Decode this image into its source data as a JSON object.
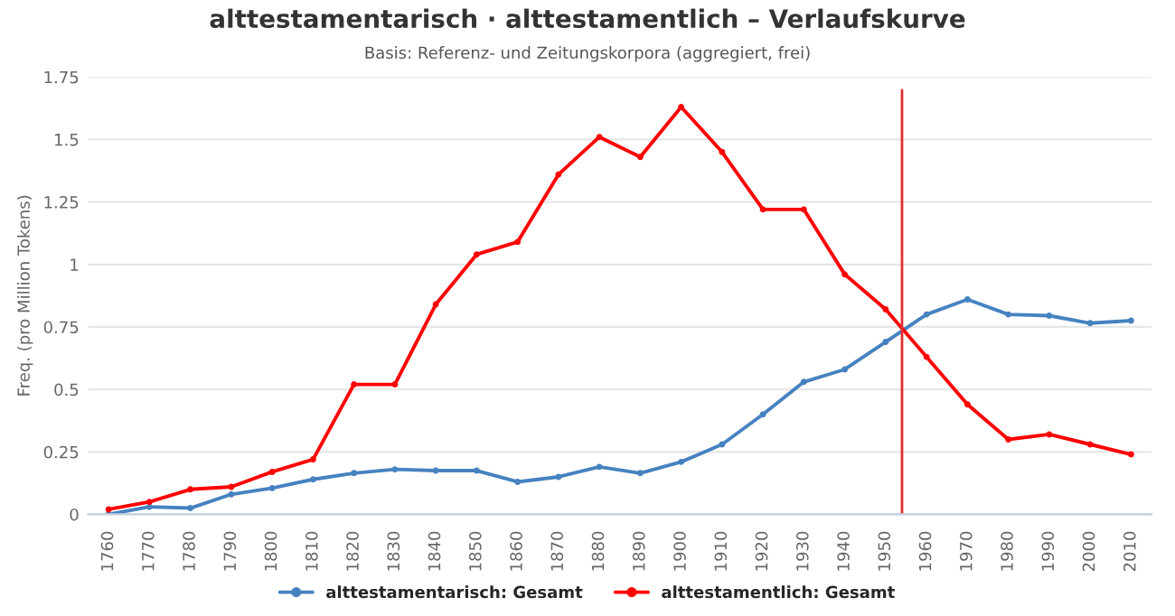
{
  "chart_data": {
    "type": "line",
    "title": "alttestamentarisch · alttestamentlich – Verlaufskurve",
    "subtitle": "Basis: Referenz- und Zeitungskorpora (aggregiert, frei)",
    "ylabel": "Freq. (pro Million Tokens)",
    "x": [
      1760,
      1770,
      1780,
      1790,
      1800,
      1810,
      1820,
      1830,
      1840,
      1850,
      1860,
      1870,
      1880,
      1890,
      1900,
      1910,
      1920,
      1930,
      1940,
      1950,
      1960,
      1970,
      1980,
      1990,
      2000,
      2010
    ],
    "series": [
      {
        "name": "alttestamentarisch: Gesamt",
        "color": "#4682c0",
        "values": [
          0,
          0.03,
          0.025,
          0.08,
          0.105,
          0.14,
          0.165,
          0.18,
          0.175,
          0.175,
          0.13,
          0.15,
          0.19,
          0.165,
          0.21,
          0.28,
          0.4,
          0.53,
          0.58,
          0.69,
          0.8,
          0.86,
          0.8,
          0.795,
          0.765,
          0.775
        ]
      },
      {
        "name": "alttestamentlich: Gesamt",
        "color": "#ff0000",
        "values": [
          0.02,
          0.05,
          0.1,
          0.11,
          0.17,
          0.22,
          0.52,
          0.52,
          0.84,
          1.04,
          1.09,
          1.36,
          1.51,
          1.43,
          1.63,
          1.45,
          1.22,
          1.22,
          0.96,
          0.82,
          0.63,
          0.44,
          0.3,
          0.32,
          0.28,
          0.24
        ]
      }
    ],
    "xlim": [
      1755,
      2015
    ],
    "xticks": [
      1760,
      1770,
      1780,
      1790,
      1800,
      1810,
      1820,
      1830,
      1840,
      1850,
      1860,
      1870,
      1880,
      1890,
      1900,
      1910,
      1920,
      1930,
      1940,
      1950,
      1960,
      1970,
      1980,
      1990,
      2000,
      2010
    ],
    "ylim": [
      0,
      1.75
    ],
    "yticks": [
      0,
      0.25,
      0.5,
      0.75,
      1,
      1.25,
      1.5,
      1.75
    ],
    "ref_lines": [
      {
        "axis": "x",
        "value": 1954,
        "label": null,
        "color": "#e03030"
      }
    ],
    "grid": "y",
    "legend": "bottom",
    "marker": "circle",
    "line_style": "solid"
  }
}
